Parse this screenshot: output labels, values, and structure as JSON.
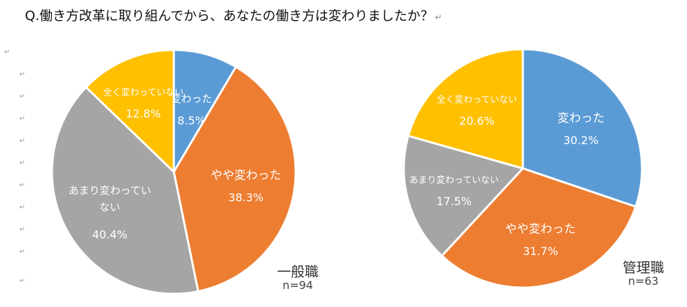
{
  "question": "Q.働き方改革に取り組んでから、あなたの働き方は変わりましたか？",
  "question_mark": "↵",
  "colors": {
    "変わった": "#5B9BD5",
    "やや変わった": "#ED7D31",
    "あまり変わっていない": "#A5A5A5",
    "全く変わっていない": "#FFC000"
  },
  "chart_data": [
    {
      "type": "pie",
      "group": "一般職",
      "n_label": "n=94",
      "categories": [
        "変わった",
        "やや変わった",
        "あまり変わっていない",
        "全く変わっていない"
      ],
      "values": [
        8.5,
        38.3,
        40.4,
        12.8
      ],
      "label_lines": [
        [
          "変わった"
        ],
        [
          "やや変わった"
        ],
        [
          "あまり変わってい",
          "ない"
        ],
        [
          "全く変わっていない"
        ]
      ],
      "pct_labels": [
        "8.5%",
        "38.3%",
        "40.4%",
        "12.8%"
      ]
    },
    {
      "type": "pie",
      "group": "管理職",
      "n_label": "n=63",
      "categories": [
        "変わった",
        "やや変わった",
        "あまり変わっていない",
        "全く変わっていない"
      ],
      "values": [
        30.2,
        31.7,
        17.5,
        20.6
      ],
      "label_lines": [
        [
          "変わった"
        ],
        [
          "やや変わった"
        ],
        [
          "あまり変わっていない"
        ],
        [
          "全く変わっていない"
        ]
      ],
      "pct_labels": [
        "30.2%",
        "31.7%",
        "17.5%",
        "20.6%"
      ]
    }
  ]
}
